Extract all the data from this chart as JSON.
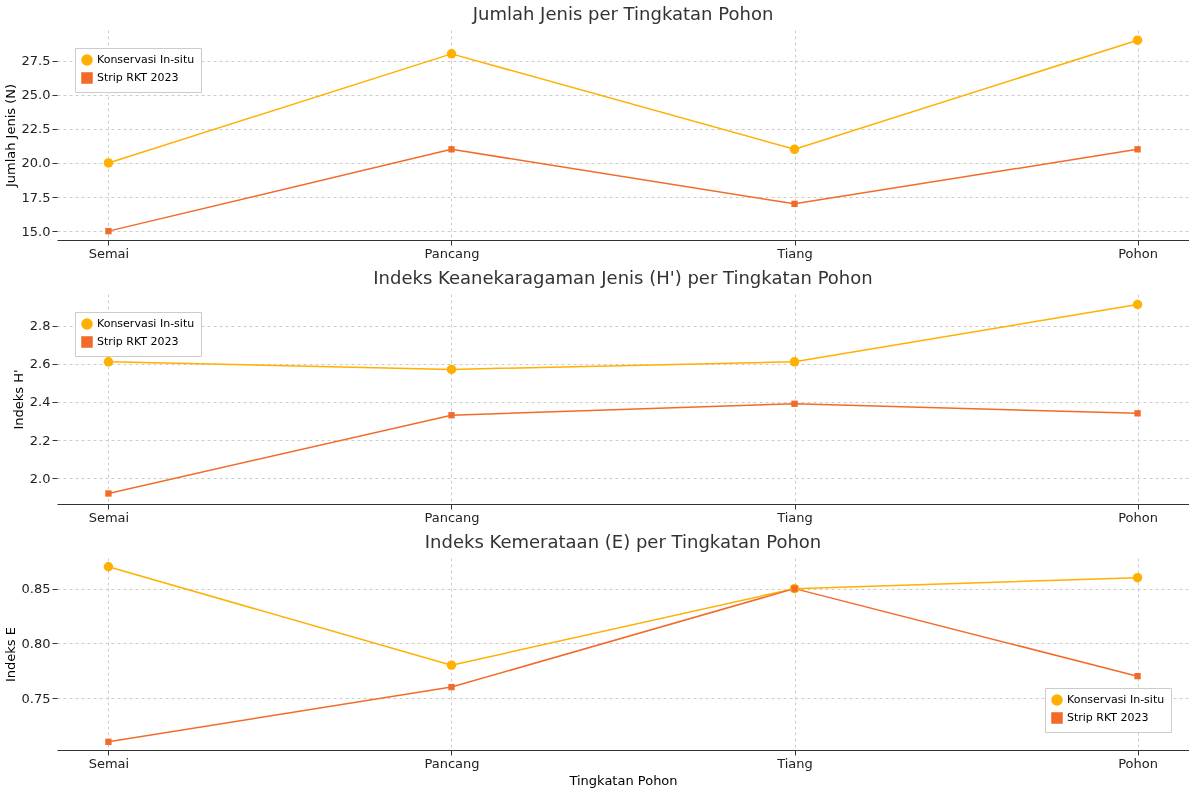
{
  "chart_data": [
    {
      "type": "line",
      "title": "Jumlah Jenis per Tingkatan Pohon",
      "ylabel": "Jumlah Jenis (N)",
      "categories": [
        "Semai",
        "Pancang",
        "Tiang",
        "Pohon"
      ],
      "series": [
        {
          "name": "Konservasi In-situ",
          "color": "#ffb000",
          "marker": "circle",
          "values": [
            20,
            28,
            21,
            29
          ]
        },
        {
          "name": "Strip RKT 2023",
          "color": "#f26b2a",
          "marker": "square",
          "values": [
            15,
            21,
            17,
            21
          ]
        }
      ],
      "ylim": [
        14.35,
        29.75
      ],
      "yticks": [
        {
          "value": 15,
          "label": "15.0"
        },
        {
          "value": 17.5,
          "label": "17.5"
        },
        {
          "value": 20,
          "label": "20.0"
        },
        {
          "value": 22.5,
          "label": "22.5"
        },
        {
          "value": 25,
          "label": "25.0"
        },
        {
          "value": 27.5,
          "label": "27.5"
        }
      ],
      "grid": true,
      "legend": "top left",
      "line_style": "solid"
    },
    {
      "type": "line",
      "title": "Indeks Keanekaragaman Jenis (H') per Tingkatan Pohon",
      "ylabel": "Indeks H'",
      "categories": [
        "Semai",
        "Pancang",
        "Tiang",
        "Pohon"
      ],
      "series": [
        {
          "name": "Konservasi In-situ",
          "color": "#ffb000",
          "marker": "circle",
          "values": [
            2.61,
            2.57,
            2.61,
            2.91
          ]
        },
        {
          "name": "Strip RKT 2023",
          "color": "#f26b2a",
          "marker": "square",
          "values": [
            1.92,
            2.33,
            2.39,
            2.34
          ]
        }
      ],
      "ylim": [
        1.865,
        2.965
      ],
      "yticks": [
        {
          "value": 2,
          "label": "2.0"
        },
        {
          "value": 2.2,
          "label": "2.2"
        },
        {
          "value": 2.4,
          "label": "2.4"
        },
        {
          "value": 2.6,
          "label": "2.6"
        },
        {
          "value": 2.8,
          "label": "2.8"
        }
      ],
      "grid": true,
      "legend": "top left",
      "line_style": "solid"
    },
    {
      "type": "line",
      "title": "Indeks Kemerataan (E) per Tingkatan Pohon",
      "xlabel": "Tingkatan Pohon",
      "ylabel": "Indeks E",
      "categories": [
        "Semai",
        "Pancang",
        "Tiang",
        "Pohon"
      ],
      "series": [
        {
          "name": "Konservasi In-situ",
          "color": "#ffb000",
          "marker": "circle",
          "values": [
            0.87,
            0.78,
            0.85,
            0.86
          ]
        },
        {
          "name": "Strip RKT 2023",
          "color": "#f26b2a",
          "marker": "square",
          "values": [
            0.71,
            0.76,
            0.85,
            0.77
          ]
        }
      ],
      "ylim": [
        0.7025,
        0.878
      ],
      "yticks": [
        {
          "value": 0.75,
          "label": "0.75"
        },
        {
          "value": 0.8,
          "label": "0.80"
        },
        {
          "value": 0.85,
          "label": "0.85"
        }
      ],
      "grid": true,
      "legend": "bottom right",
      "line_style": "solid"
    }
  ]
}
